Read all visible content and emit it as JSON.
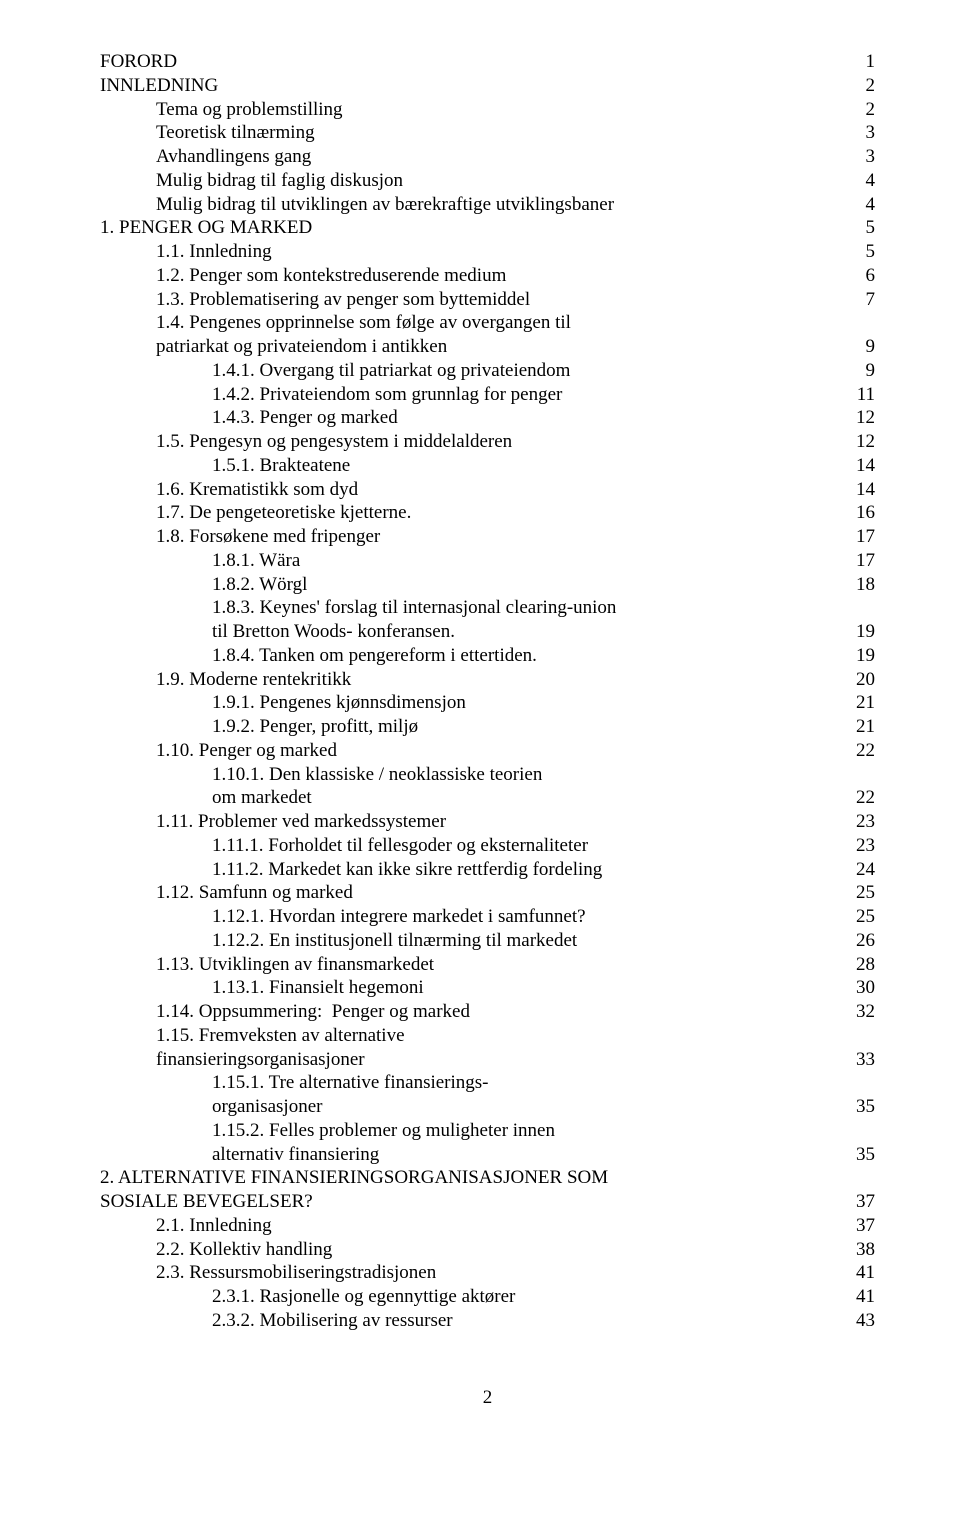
{
  "toc": [
    {
      "indent": 0,
      "label": "FORORD",
      "page": "1"
    },
    {
      "indent": 0,
      "label": "INNLEDNING",
      "page": "2"
    },
    {
      "indent": 1,
      "label": "Tema og problemstilling",
      "page": "2"
    },
    {
      "indent": 1,
      "label": "Teoretisk tilnærming",
      "page": "3"
    },
    {
      "indent": 1,
      "label": "Avhandlingens gang",
      "page": "3"
    },
    {
      "indent": 1,
      "label": "Mulig bidrag til faglig diskusjon",
      "page": "4"
    },
    {
      "indent": 1,
      "label": "Mulig bidrag til utviklingen av bærekraftige utviklingsbaner",
      "page": "4"
    },
    {
      "indent": 0,
      "label": "1. PENGER OG MARKED",
      "page": "5"
    },
    {
      "indent": 1,
      "label": "1.1. Innledning",
      "page": "5"
    },
    {
      "indent": 1,
      "label": "1.2. Penger som kontekstreduserende medium",
      "page": "6"
    },
    {
      "indent": 1,
      "label": "1.3. Problematisering av penger som byttemiddel",
      "page": "7"
    },
    {
      "indent": 1,
      "label": "1.4. Pengenes opprinnelse som følge av overgangen til",
      "page": ""
    },
    {
      "indent": 1,
      "label": "patriarkat og privateiendom i antikken",
      "page": "9"
    },
    {
      "indent": 2,
      "label": "1.4.1. Overgang til patriarkat og privateiendom",
      "page": "9"
    },
    {
      "indent": 2,
      "label": "1.4.2. Privateiendom som grunnlag for penger",
      "page": "11"
    },
    {
      "indent": 2,
      "label": "1.4.3. Penger og marked",
      "page": "12"
    },
    {
      "indent": 1,
      "label": "1.5. Pengesyn og pengesystem i middelalderen",
      "page": "12"
    },
    {
      "indent": 2,
      "label": "1.5.1. Brakteatene",
      "page": "14"
    },
    {
      "indent": 1,
      "label": "1.6. Krematistikk som dyd",
      "page": "14"
    },
    {
      "indent": 1,
      "label": "1.7. De pengeteoretiske kjetterne.",
      "page": "16"
    },
    {
      "indent": 1,
      "label": "1.8. Forsøkene med fripenger",
      "page": "17"
    },
    {
      "indent": 2,
      "label": "1.8.1. Wära",
      "page": "17"
    },
    {
      "indent": 2,
      "label": "1.8.2. Wörgl",
      "page": "18"
    },
    {
      "indent": 2,
      "label": "1.8.3. Keynes' forslag til internasjonal clearing-union",
      "page": ""
    },
    {
      "indent": 2,
      "label": "til Bretton Woods- konferansen.",
      "page": "19"
    },
    {
      "indent": 2,
      "label": "1.8.4. Tanken om pengereform i ettertiden.",
      "page": "19"
    },
    {
      "indent": 1,
      "label": "1.9. Moderne rentekritikk",
      "page": "20"
    },
    {
      "indent": 2,
      "label": "1.9.1. Pengenes kjønnsdimensjon",
      "page": "21"
    },
    {
      "indent": 2,
      "label": "1.9.2. Penger, profitt, miljø",
      "page": "21"
    },
    {
      "indent": 1,
      "label": "1.10. Penger og marked",
      "page": "22"
    },
    {
      "indent": 2,
      "label": "1.10.1. Den klassiske / neoklassiske teorien",
      "page": ""
    },
    {
      "indent": 2,
      "label": "om markedet",
      "page": "22"
    },
    {
      "indent": 1,
      "label": "1.11. Problemer ved markedssystemer",
      "page": "23"
    },
    {
      "indent": 2,
      "label": "1.11.1. Forholdet til fellesgoder og eksternaliteter",
      "page": "23"
    },
    {
      "indent": 2,
      "label": "1.11.2. Markedet kan ikke sikre rettferdig fordeling",
      "page": "24"
    },
    {
      "indent": 1,
      "label": "1.12. Samfunn og marked",
      "page": "25"
    },
    {
      "indent": 2,
      "label": "1.12.1. Hvordan integrere markedet i samfunnet?",
      "page": "25"
    },
    {
      "indent": 2,
      "label": "1.12.2. En institusjonell tilnærming til markedet",
      "page": "26"
    },
    {
      "indent": 1,
      "label": "1.13. Utviklingen av finansmarkedet",
      "page": "28"
    },
    {
      "indent": 2,
      "label": "1.13.1. Finansielt hegemoni",
      "page": "30"
    },
    {
      "indent": 1,
      "label": "1.14. Oppsummering:  Penger og marked",
      "page": "32"
    },
    {
      "indent": 1,
      "label": "1.15. Fremveksten av alternative",
      "page": ""
    },
    {
      "indent": 1,
      "label": "finansieringsorganisasjoner",
      "page": "33"
    },
    {
      "indent": 2,
      "label": "1.15.1. Tre alternative finansierings-",
      "page": ""
    },
    {
      "indent": 2,
      "label": "organisasjoner",
      "page": "35"
    },
    {
      "indent": 2,
      "label": "1.15.2. Felles problemer og muligheter innen",
      "page": ""
    },
    {
      "indent": 2,
      "label": "alternativ finansiering",
      "page": "35"
    },
    {
      "indent": 0,
      "label": "2. ALTERNATIVE FINANSIERINGSORGANISASJONER SOM",
      "page": ""
    },
    {
      "indent": 0,
      "label": "SOSIALE BEVEGELSER?",
      "page": "37"
    },
    {
      "indent": 1,
      "label": "2.1. Innledning",
      "page": "37"
    },
    {
      "indent": 1,
      "label": "2.2. Kollektiv handling",
      "page": "38"
    },
    {
      "indent": 1,
      "label": "2.3. Ressursmobiliseringstradisjonen",
      "page": "41"
    },
    {
      "indent": 2,
      "label": "2.3.1. Rasjonelle og egennyttige aktører",
      "page": "41"
    },
    {
      "indent": 2,
      "label": "2.3.2. Mobilisering av ressurser",
      "page": "43"
    }
  ],
  "pageNumber": "2",
  "style": {
    "fontFamily": "Times New Roman",
    "fontSize": 19,
    "textColor": "#000000",
    "backgroundColor": "#ffffff",
    "lineHeight": 1.25,
    "indentStep": 56
  }
}
